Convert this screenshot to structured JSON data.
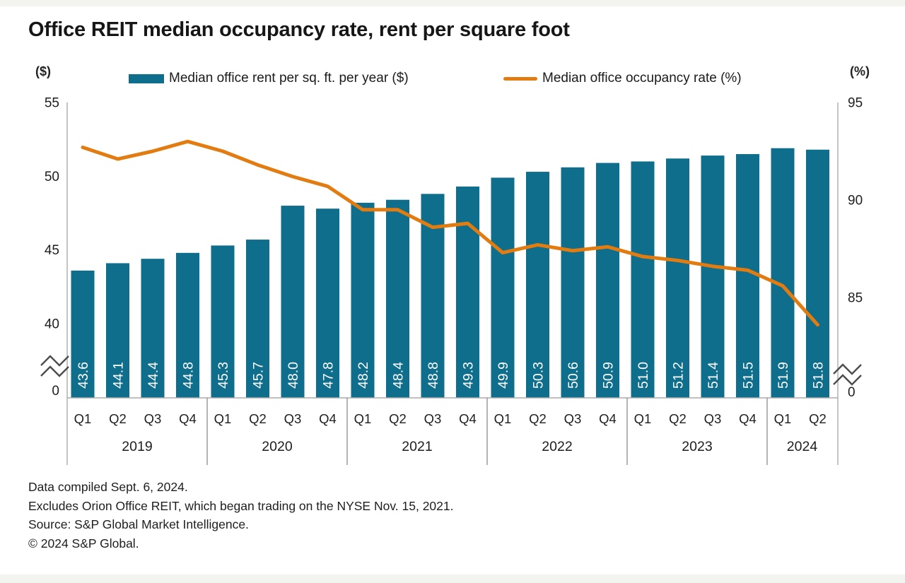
{
  "title": "Office REIT median occupancy rate, rent per square foot",
  "legend": {
    "bar_label": "Median office rent per sq. ft. per year ($)",
    "line_label": "Median office occupancy rate (%)"
  },
  "chart_data": {
    "type": "bar+line combo",
    "categories": [
      {
        "year": "2019",
        "quarters": [
          "Q1",
          "Q2",
          "Q3",
          "Q4"
        ]
      },
      {
        "year": "2020",
        "quarters": [
          "Q1",
          "Q2",
          "Q3",
          "Q4"
        ]
      },
      {
        "year": "2021",
        "quarters": [
          "Q1",
          "Q2",
          "Q3",
          "Q4"
        ]
      },
      {
        "year": "2022",
        "quarters": [
          "Q1",
          "Q2",
          "Q3",
          "Q4"
        ]
      },
      {
        "year": "2023",
        "quarters": [
          "Q1",
          "Q2",
          "Q3",
          "Q4"
        ]
      },
      {
        "year": "2024",
        "quarters": [
          "Q1",
          "Q2"
        ]
      }
    ],
    "series": [
      {
        "name": "Median office rent per sq. ft. per year ($)",
        "type": "bar",
        "axis": "left",
        "color": "#0f6e8c",
        "label_color": "#ffffff",
        "values": [
          43.6,
          44.1,
          44.4,
          44.8,
          45.3,
          45.7,
          48.0,
          47.8,
          48.2,
          48.4,
          48.8,
          49.3,
          49.9,
          50.3,
          50.6,
          50.9,
          51.0,
          51.2,
          51.4,
          51.5,
          51.9,
          51.8
        ]
      },
      {
        "name": "Median office occupancy rate (%)",
        "type": "line",
        "axis": "right",
        "color": "#e27c10",
        "values": [
          92.7,
          92.1,
          92.5,
          93.0,
          92.5,
          91.8,
          91.2,
          90.7,
          89.5,
          89.5,
          88.6,
          88.8,
          87.3,
          87.7,
          87.4,
          87.6,
          87.1,
          86.9,
          86.6,
          86.4,
          85.6,
          83.6
        ]
      }
    ],
    "left_axis": {
      "unit_label": "($)",
      "ticks": [
        "55",
        "50",
        "45",
        "40",
        "0"
      ],
      "range_shown": [
        40,
        55
      ],
      "axis_break": true
    },
    "right_axis": {
      "unit_label": "(%)",
      "ticks": [
        "95",
        "90",
        "85",
        "0"
      ],
      "range_shown": [
        85,
        95
      ],
      "axis_break": true
    },
    "grid": false,
    "legend_position": "top"
  },
  "footnotes": [
    "Data compiled Sept. 6, 2024.",
    "Excludes Orion Office REIT, which began trading on the NYSE Nov. 15, 2021.",
    "Source: S&P Global Market Intelligence.",
    "© 2024 S&P Global."
  ]
}
